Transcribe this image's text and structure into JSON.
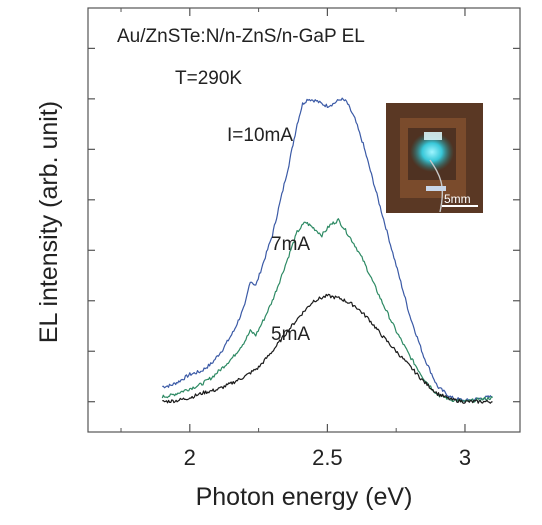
{
  "chart_data": {
    "type": "line",
    "title": "",
    "xlabel": "Photon energy (eV)",
    "ylabel": "EL intensity (arb. unit)",
    "xlim": [
      1.63,
      3.2
    ],
    "ylim": [
      -0.3,
      3.9
    ],
    "x_ticks": [
      2,
      2.5,
      3
    ],
    "x_tick_labels": [
      "2",
      "2.5",
      "3"
    ],
    "y_ticks_unlabeled": [
      0,
      0.5,
      1.0,
      1.5,
      2.0,
      2.5,
      3.0,
      3.5
    ],
    "grid": false,
    "legend": "none",
    "annotations": {
      "sample": "Au/ZnSTe:N/n-ZnS/n-GaP EL",
      "temperature": "T=290K",
      "inset_scale": "5mm"
    },
    "series": [
      {
        "label": "I=10mA",
        "color": "#3b5aa6",
        "x": [
          1.9,
          1.93,
          1.96,
          2.0,
          2.04,
          2.08,
          2.12,
          2.16,
          2.2,
          2.22,
          2.24,
          2.27,
          2.3,
          2.33,
          2.36,
          2.39,
          2.41,
          2.43,
          2.46,
          2.48,
          2.5,
          2.52,
          2.55,
          2.57,
          2.6,
          2.63,
          2.66,
          2.7,
          2.75,
          2.8,
          2.85,
          2.9,
          2.95,
          3.0,
          3.1
        ],
        "y": [
          0.15,
          0.16,
          0.2,
          0.27,
          0.3,
          0.38,
          0.52,
          0.7,
          0.95,
          1.2,
          1.15,
          1.4,
          1.65,
          2.0,
          2.35,
          2.75,
          2.95,
          3.0,
          2.98,
          2.95,
          2.93,
          2.95,
          3.0,
          2.97,
          2.8,
          2.55,
          2.25,
          1.85,
          1.35,
          0.85,
          0.45,
          0.15,
          0.04,
          0.01,
          0.05
        ]
      },
      {
        "label": "7mA",
        "color": "#2e8a64",
        "x": [
          1.9,
          1.93,
          1.96,
          2.0,
          2.04,
          2.08,
          2.12,
          2.16,
          2.2,
          2.22,
          2.24,
          2.27,
          2.3,
          2.33,
          2.36,
          2.39,
          2.42,
          2.45,
          2.48,
          2.51,
          2.54,
          2.57,
          2.6,
          2.63,
          2.66,
          2.7,
          2.75,
          2.8,
          2.85,
          2.9,
          2.95,
          3.0,
          3.1
        ],
        "y": [
          0.05,
          0.06,
          0.09,
          0.13,
          0.17,
          0.24,
          0.34,
          0.45,
          0.6,
          0.7,
          0.66,
          0.82,
          1.0,
          1.22,
          1.45,
          1.68,
          1.78,
          1.72,
          1.65,
          1.75,
          1.8,
          1.68,
          1.55,
          1.4,
          1.22,
          0.98,
          0.7,
          0.45,
          0.23,
          0.07,
          0.02,
          0.0,
          0.04
        ]
      },
      {
        "label": "5mA",
        "color": "#1a1a1a",
        "x": [
          1.9,
          1.95,
          2.0,
          2.05,
          2.1,
          2.15,
          2.2,
          2.25,
          2.3,
          2.35,
          2.4,
          2.45,
          2.5,
          2.55,
          2.6,
          2.65,
          2.7,
          2.75,
          2.8,
          2.85,
          2.9,
          2.95,
          3.0,
          3.1
        ],
        "y": [
          0.0,
          0.01,
          0.04,
          0.09,
          0.12,
          0.18,
          0.25,
          0.34,
          0.5,
          0.68,
          0.85,
          1.0,
          1.05,
          1.02,
          0.95,
          0.82,
          0.65,
          0.5,
          0.35,
          0.2,
          0.08,
          0.02,
          0.0,
          0.0
        ]
      }
    ]
  }
}
